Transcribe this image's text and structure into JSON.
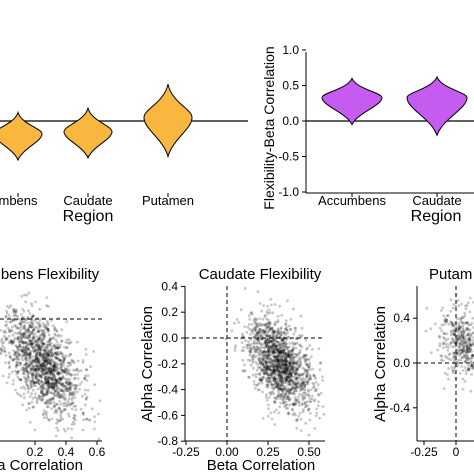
{
  "chart_data": [
    {
      "type": "violin",
      "ylabel": "",
      "xlabel": "Region",
      "categories": [
        "Accumbens",
        "Caudate",
        "Putamen"
      ],
      "tick_labels": [
        "mbens",
        "Caudate",
        "Putamen"
      ],
      "ylim": [
        -1,
        1
      ],
      "reference_line_y": 0,
      "fill_color": "#F9B73F",
      "violins": [
        {
          "category": "Accumbens",
          "median": -0.18,
          "min": -0.55,
          "max": 0.12
        },
        {
          "category": "Caudate",
          "median": -0.15,
          "min": -0.52,
          "max": 0.18
        },
        {
          "category": "Putamen",
          "median": 0.05,
          "min": -0.5,
          "max": 0.52
        }
      ]
    },
    {
      "type": "violin",
      "ylabel": "Flexibility-Beta Correlation",
      "xlabel": "Region",
      "categories": [
        "Accumbens",
        "Caudate"
      ],
      "tick_labels": [
        "Accumbens",
        "Caudate"
      ],
      "ylim": [
        -1,
        1
      ],
      "yticks": [
        -1.0,
        -0.5,
        0.0,
        0.5,
        1.0
      ],
      "ytick_labels": [
        "-1.0",
        "-0.5",
        "0.0",
        "0.5",
        "1.0"
      ],
      "reference_line_y": 0,
      "fill_color": "#C65BF2",
      "violins": [
        {
          "category": "Accumbens",
          "median": 0.33,
          "min": -0.05,
          "max": 0.6
        },
        {
          "category": "Caudate",
          "median": 0.33,
          "min": -0.2,
          "max": 0.62
        }
      ]
    },
    {
      "type": "scatter",
      "title": "bens Flexibility",
      "xlabel": "a Correlation",
      "xlim": [
        0,
        0.65
      ],
      "xticks": [
        0.2,
        0.4,
        0.6
      ],
      "xtick_labels": [
        "0.2",
        "0.4",
        "0.6"
      ],
      "ylim": [
        -0.8,
        0.45
      ],
      "hline_y": 0.35,
      "cloud": {
        "x_mean": 0.25,
        "y_mean": -0.2,
        "x_sd": 0.12,
        "y_sd": 0.2,
        "correlation": -0.5,
        "n_points": 1500
      }
    },
    {
      "type": "scatter",
      "title": "Caudate Flexibility",
      "xlabel": "Beta Correlation",
      "ylabel": "Alpha Correlation",
      "xlim": [
        -0.3,
        0.62
      ],
      "xticks": [
        -0.25,
        0.0,
        0.25,
        0.5
      ],
      "xtick_labels": [
        "-0.25",
        "0.00",
        "0.25",
        "0.50"
      ],
      "ylim": [
        -0.8,
        0.45
      ],
      "yticks": [
        -0.8,
        -0.6,
        -0.4,
        -0.2,
        0.0,
        0.2,
        0.4
      ],
      "ytick_labels": [
        "-0.8",
        "-0.6",
        "-0.4",
        "-0.2",
        "0.0",
        "0.2",
        "0.4"
      ],
      "hline_y": 0,
      "vline_x": 0,
      "cloud": {
        "x_mean": 0.32,
        "y_mean": -0.2,
        "x_sd": 0.1,
        "y_sd": 0.18,
        "correlation": -0.5,
        "n_points": 1500
      }
    },
    {
      "type": "scatter",
      "title": "Putam",
      "ylabel": "Alpha Correlation",
      "xlim": [
        -0.35,
        0.2
      ],
      "xticks": [
        -0.25,
        0.0
      ],
      "xtick_labels": [
        "-0.25",
        "0"
      ],
      "ylim": [
        -0.6,
        0.6
      ],
      "yticks": [
        -0.4,
        0.0,
        0.4
      ],
      "ytick_labels": [
        "-0.4",
        "0.0",
        "0.4"
      ],
      "hline_y": 0,
      "vline_x": 0,
      "cloud": {
        "x_mean": 0.1,
        "y_mean": 0.15,
        "x_sd": 0.12,
        "y_sd": 0.15,
        "correlation": -0.3,
        "n_points": 600
      }
    }
  ]
}
